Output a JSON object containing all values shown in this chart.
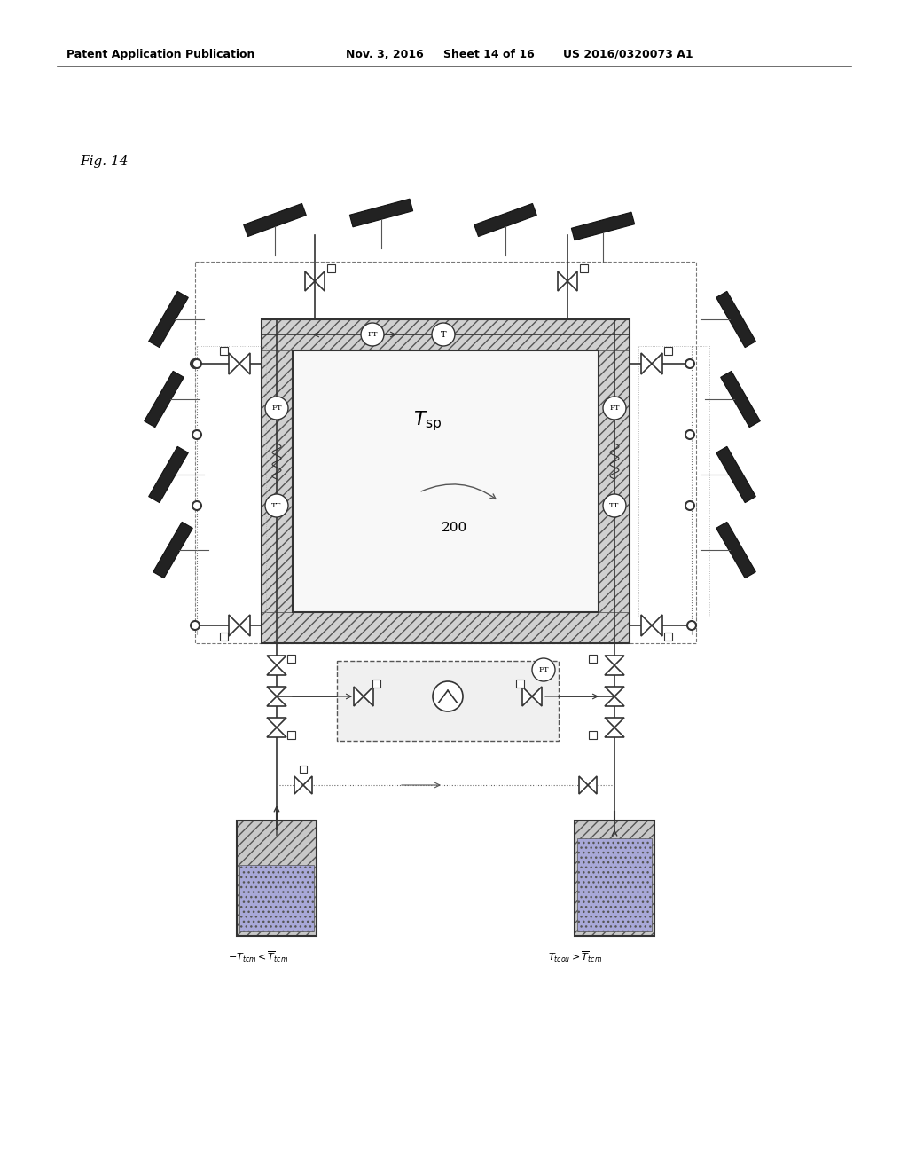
{
  "title_header": "Patent Application Publication",
  "date": "Nov. 3, 2016",
  "sheet": "Sheet 14 of 16",
  "patent_num": "US 2016/0320073 A1",
  "fig_label": "Fig. 14",
  "room_label": "T_sp",
  "room_number": "200",
  "label_tcm_cold": "T_{tcm} < \\overline{T}_{tcm}",
  "label_tcm_hot": "T_{tcou} > \\overline{T}_{tcm}",
  "bg_color": "#ffffff",
  "diagram_color": "#333333",
  "hatching_color": "#888888",
  "light_gray": "#cccccc",
  "medium_gray": "#999999"
}
